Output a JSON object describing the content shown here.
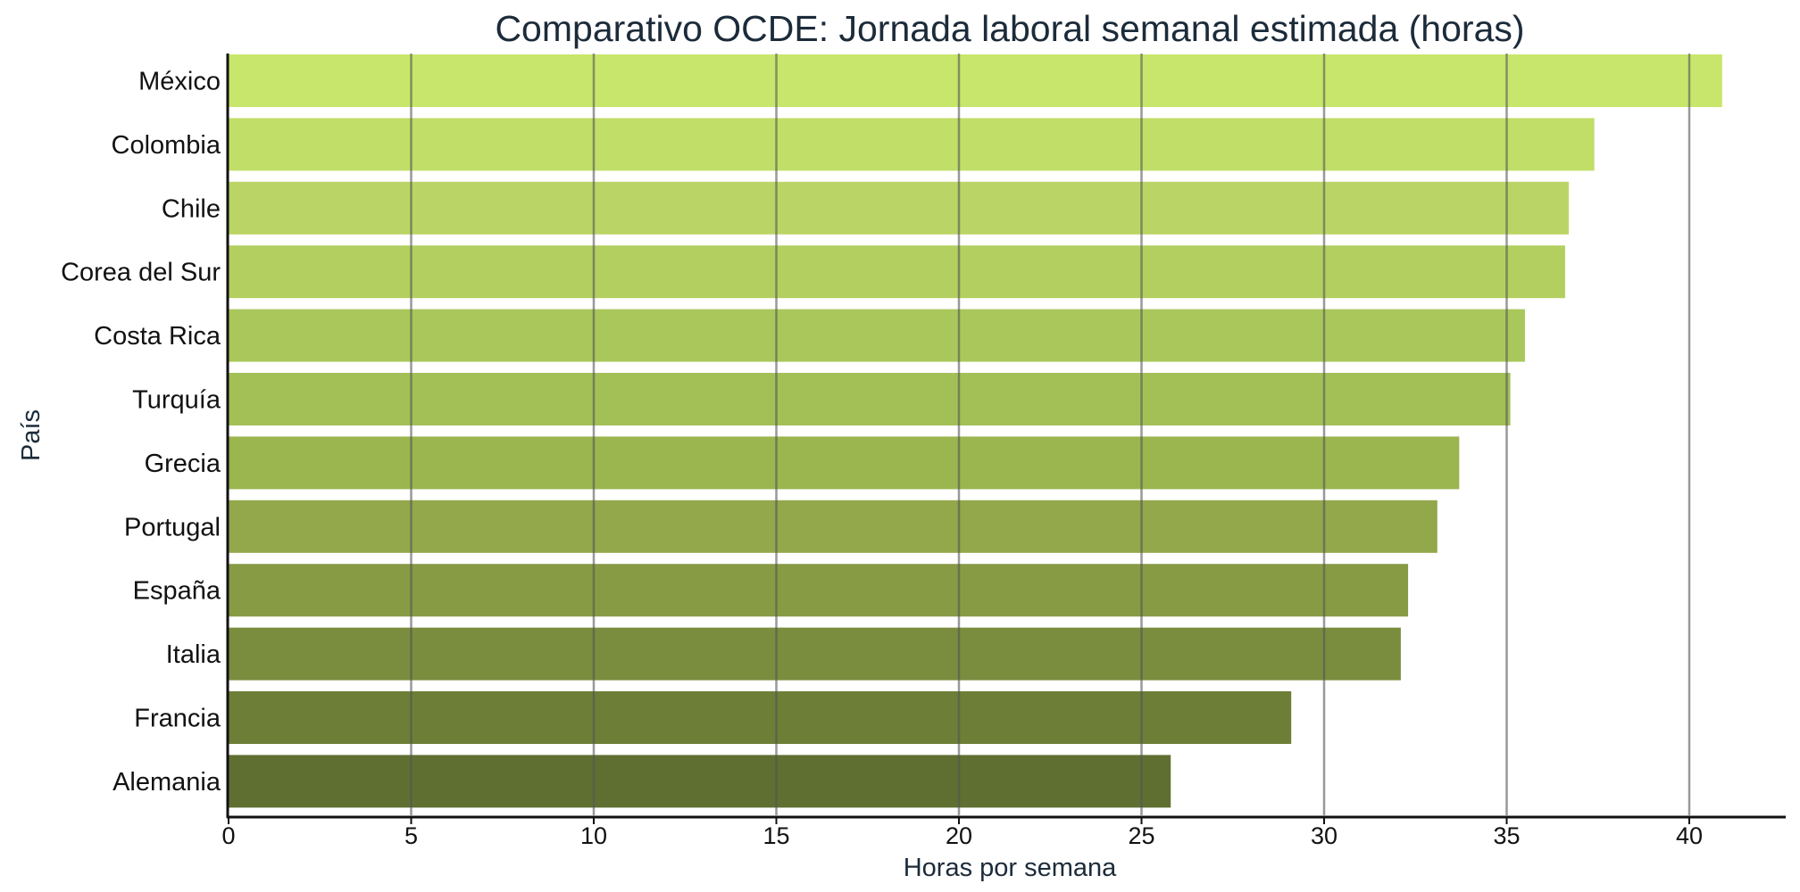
{
  "chart_data": {
    "type": "bar",
    "orientation": "horizontal",
    "title": "Comparativo OCDE: Jornada laboral semanal estimada (horas)",
    "xlabel": "Horas por semana",
    "ylabel": "País",
    "categories": [
      "México",
      "Colombia",
      "Chile",
      "Corea del Sur",
      "Costa Rica",
      "Turquía",
      "Grecia",
      "Portugal",
      "España",
      "Italia",
      "Francia",
      "Alemania"
    ],
    "values": [
      40.9,
      37.4,
      36.7,
      36.6,
      35.5,
      35.1,
      33.7,
      33.1,
      32.3,
      32.1,
      29.1,
      25.8
    ],
    "colors": [
      "#c8e66b",
      "#c1de68",
      "#bad565",
      "#b3cf60",
      "#aac75c",
      "#a3c057",
      "#9bb54f",
      "#92a84b",
      "#879b44",
      "#7a8d3f",
      "#6d7e37",
      "#5f6f31"
    ],
    "xlim": [
      0,
      43
    ],
    "xticks": [
      0,
      5,
      10,
      15,
      20,
      25,
      30,
      35,
      40
    ],
    "grid": true
  }
}
